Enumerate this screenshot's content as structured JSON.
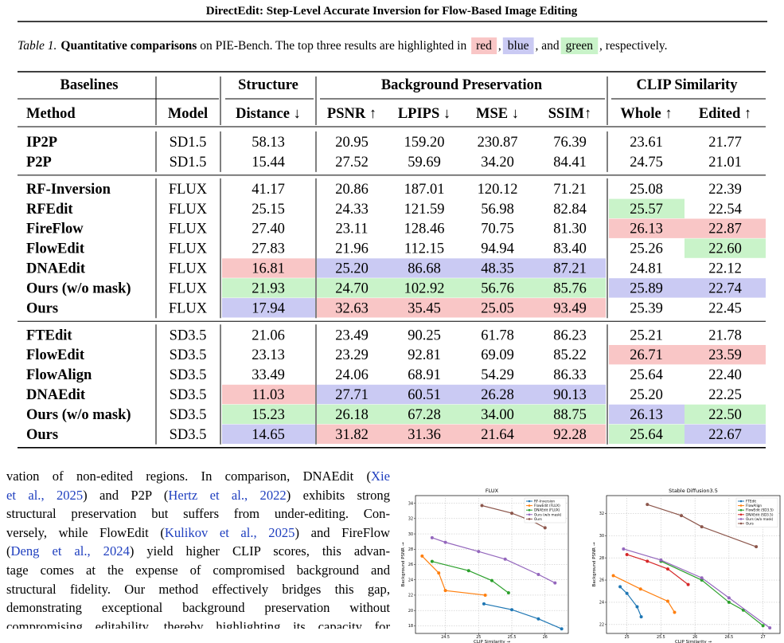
{
  "header": {
    "title": "DirectEdit: Step-Level Accurate Inversion for Flow-Based Image Editing"
  },
  "caption": {
    "label": "Table 1.",
    "bold": "Quantitative comparisons",
    "text1": " on PIE-Bench. The top three results are highlighted in ",
    "red": "red",
    "sep1": ",",
    "blue": "blue",
    "sep2": ", and",
    "green": "green",
    "text2": ", respectively."
  },
  "table": {
    "highlight_colors": {
      "red": "#f9c6c6",
      "blue": "#cacaf3",
      "green": "#c9f3c9"
    },
    "groups": [
      "Baselines",
      "Structure",
      "Background Preservation",
      "CLIP Similarity"
    ],
    "columns": [
      "Method",
      "Model",
      "Distance ↓",
      "PSNR ↑",
      "LPIPS ↓",
      "MSE ↓",
      "SSIM↑",
      "Whole ↑",
      "Edited ↑"
    ],
    "sections": [
      [
        {
          "method": "IP2P",
          "model": "SD1.5",
          "values": [
            "58.13",
            "20.95",
            "159.20",
            "230.87",
            "76.39",
            "23.61",
            "21.77"
          ]
        },
        {
          "method": "P2P",
          "model": "SD1.5",
          "values": [
            "15.44",
            "27.52",
            "59.69",
            "34.20",
            "84.41",
            "24.75",
            "21.01"
          ]
        }
      ],
      [
        {
          "method": "RF-Inversion",
          "model": "FLUX",
          "values": [
            "41.17",
            "20.86",
            "187.01",
            "120.12",
            "71.21",
            "25.08",
            "22.39"
          ]
        },
        {
          "method": "RFEdit",
          "model": "FLUX",
          "values": [
            "25.15",
            "24.33",
            "121.59",
            "56.98",
            "82.84",
            "25.57",
            "22.54"
          ],
          "highlight": {
            "5": "green"
          }
        },
        {
          "method": "FireFlow",
          "model": "FLUX",
          "values": [
            "27.40",
            "23.11",
            "128.46",
            "70.75",
            "81.30",
            "26.13",
            "22.87"
          ],
          "highlight": {
            "5": "red",
            "6": "red"
          }
        },
        {
          "method": "FlowEdit",
          "model": "FLUX",
          "values": [
            "27.83",
            "21.96",
            "112.15",
            "94.94",
            "83.40",
            "25.26",
            "22.60"
          ],
          "highlight": {
            "6": "green"
          }
        },
        {
          "method": "DNAEdit",
          "model": "FLUX",
          "values": [
            "16.81",
            "25.20",
            "86.68",
            "48.35",
            "87.21",
            "24.81",
            "22.12"
          ],
          "highlight": {
            "0": "red",
            "1": "blue",
            "2": "blue",
            "3": "blue",
            "4": "blue"
          }
        },
        {
          "method": "Ours (w/o mask)",
          "model": "FLUX",
          "values": [
            "21.93",
            "24.70",
            "102.92",
            "56.76",
            "85.76",
            "25.89",
            "22.74"
          ],
          "highlight": {
            "0": "green",
            "1": "green",
            "2": "green",
            "3": "green",
            "4": "green",
            "5": "blue",
            "6": "blue"
          }
        },
        {
          "method": "Ours",
          "model": "FLUX",
          "values": [
            "17.94",
            "32.63",
            "35.45",
            "25.05",
            "93.49",
            "25.39",
            "22.45"
          ],
          "highlight": {
            "0": "blue",
            "1": "red",
            "2": "red",
            "3": "red",
            "4": "red"
          }
        }
      ],
      [
        {
          "method": "FTEdit",
          "model": "SD3.5",
          "values": [
            "21.06",
            "23.49",
            "90.25",
            "61.78",
            "86.23",
            "25.21",
            "21.78"
          ]
        },
        {
          "method": "FlowEdit",
          "model": "SD3.5",
          "values": [
            "23.13",
            "23.29",
            "92.81",
            "69.09",
            "85.22",
            "26.71",
            "23.59"
          ],
          "highlight": {
            "5": "red",
            "6": "red"
          }
        },
        {
          "method": "FlowAlign",
          "model": "SD3.5",
          "values": [
            "33.49",
            "24.06",
            "68.91",
            "54.29",
            "86.33",
            "25.64",
            "22.40"
          ]
        },
        {
          "method": "DNAEdit",
          "model": "SD3.5",
          "values": [
            "11.03",
            "27.71",
            "60.51",
            "26.28",
            "90.13",
            "25.20",
            "22.25"
          ],
          "highlight": {
            "0": "red",
            "1": "blue",
            "2": "blue",
            "3": "blue",
            "4": "blue"
          }
        },
        {
          "method": "Ours (w/o mask)",
          "model": "SD3.5",
          "values": [
            "15.23",
            "26.18",
            "67.28",
            "34.00",
            "88.75",
            "26.13",
            "22.50"
          ],
          "highlight": {
            "0": "green",
            "1": "green",
            "2": "green",
            "3": "green",
            "4": "green",
            "5": "blue",
            "6": "green"
          }
        },
        {
          "method": "Ours",
          "model": "SD3.5",
          "values": [
            "14.65",
            "31.82",
            "31.36",
            "21.64",
            "92.28",
            "25.64",
            "22.67"
          ],
          "highlight": {
            "0": "blue",
            "1": "red",
            "2": "red",
            "3": "red",
            "4": "red",
            "5": "green",
            "6": "blue"
          }
        }
      ]
    ]
  },
  "body": {
    "link_color": "#1f3fbf",
    "lines": [
      [
        {
          "text": "vation of non-edited regions. In comparison, DNAEdit ("
        },
        {
          "cite": "Xie"
        }
      ],
      [
        {
          "cite": "et al., 2025"
        },
        {
          "text": ") and P2P ("
        },
        {
          "cite": "Hertz et al., 2022"
        },
        {
          "text": ") exhibits strong"
        }
      ],
      [
        {
          "text": "structural preservation but suffers from under-editing. Con-"
        }
      ],
      [
        {
          "text": "versely, while FlowEdit ("
        },
        {
          "cite": "Kulikov et al., 2025"
        },
        {
          "text": ") and FireFlow"
        }
      ],
      [
        {
          "text": "("
        },
        {
          "cite": "Deng et al., 2024"
        },
        {
          "text": ") yield higher CLIP scores, this advan-"
        }
      ],
      [
        {
          "text": "tage comes at the expense of compromised background and"
        }
      ],
      [
        {
          "text": "structural fidelity. Our method effectively bridges this gap,"
        }
      ],
      [
        {
          "text": "demonstrating exceptional background preservation without"
        }
      ],
      [
        {
          "text": "compromising editability, thereby highlighting its capacity for"
        }
      ]
    ]
  },
  "chart_data": [
    {
      "type": "line",
      "title": "FLUX",
      "x_label": "CLIP Similarity →",
      "y_label": "Background PSNR →",
      "xlim": [
        24.05,
        26.35
      ],
      "ylim": [
        17,
        35
      ],
      "xticks": [
        24.5,
        25.0,
        25.5,
        26.0
      ],
      "yticks": [
        18,
        20,
        22,
        24,
        26,
        28,
        30,
        32,
        34
      ],
      "grid": true,
      "legend": "upper right",
      "series": [
        {
          "name": "RF-Inversion",
          "color": "#1f77b4",
          "x": [
            25.08,
            25.5,
            25.9,
            26.25
          ],
          "values": [
            20.86,
            20.1,
            18.9,
            17.6
          ]
        },
        {
          "name": "FlowEdit (FLUX)",
          "color": "#ff7f0e",
          "x": [
            24.15,
            24.4,
            24.5,
            25.1
          ],
          "values": [
            27.1,
            24.9,
            22.6,
            22.0
          ]
        },
        {
          "name": "DNAEdit (FLUX)",
          "color": "#2ca02c",
          "x": [
            24.3,
            24.85,
            25.2,
            25.45
          ],
          "values": [
            26.4,
            25.2,
            23.9,
            22.3
          ]
        },
        {
          "name": "Ours (w/o mask)",
          "color": "#9467bd",
          "x": [
            24.3,
            24.5,
            25.0,
            25.4,
            25.9,
            26.15
          ],
          "values": [
            29.5,
            28.9,
            27.7,
            26.7,
            24.7,
            23.6
          ]
        },
        {
          "name": "Ours",
          "color": "#8c564b",
          "x": [
            25.05,
            25.5,
            25.8,
            26.0
          ],
          "values": [
            33.7,
            32.7,
            31.7,
            30.8
          ]
        }
      ]
    },
    {
      "type": "line",
      "title": "Stable Diffusion3.5",
      "x_label": "CLIP Similarity →",
      "y_label": "Background PSNR →",
      "xlim": [
        24.7,
        27.25
      ],
      "ylim": [
        21.2,
        33.6
      ],
      "xticks": [
        25.0,
        25.5,
        26.0,
        26.5,
        27.0
      ],
      "yticks": [
        22,
        24,
        26,
        28,
        30,
        32
      ],
      "grid": true,
      "legend": "upper right",
      "series": [
        {
          "name": "FTEdit",
          "color": "#1f77b4",
          "x": [
            24.9,
            25.0,
            25.15,
            25.21
          ],
          "values": [
            25.4,
            24.8,
            23.6,
            22.7
          ]
        },
        {
          "name": "FlowAlign",
          "color": "#ff7f0e",
          "x": [
            24.8,
            25.2,
            25.6,
            25.7
          ],
          "values": [
            26.4,
            25.2,
            24.1,
            23.1
          ]
        },
        {
          "name": "FlowEdit (SD3.5)",
          "color": "#2ca02c",
          "x": [
            25.5,
            26.1,
            26.5,
            26.71,
            27.0
          ],
          "values": [
            27.7,
            26.0,
            24.0,
            23.3,
            21.9
          ]
        },
        {
          "name": "DNAEdit (SD3.5)",
          "color": "#d62728",
          "x": [
            25.0,
            25.3,
            25.6,
            25.9
          ],
          "values": [
            28.3,
            27.7,
            27.0,
            25.6
          ]
        },
        {
          "name": "Ours (w/o mask)",
          "color": "#9467bd",
          "x": [
            24.95,
            25.5,
            26.1,
            26.5,
            27.1
          ],
          "values": [
            28.8,
            27.8,
            26.2,
            24.4,
            21.7
          ]
        },
        {
          "name": "Ours",
          "color": "#8c564b",
          "x": [
            25.3,
            25.8,
            26.1,
            26.9
          ],
          "values": [
            32.8,
            31.8,
            30.8,
            29.0
          ]
        }
      ]
    }
  ]
}
